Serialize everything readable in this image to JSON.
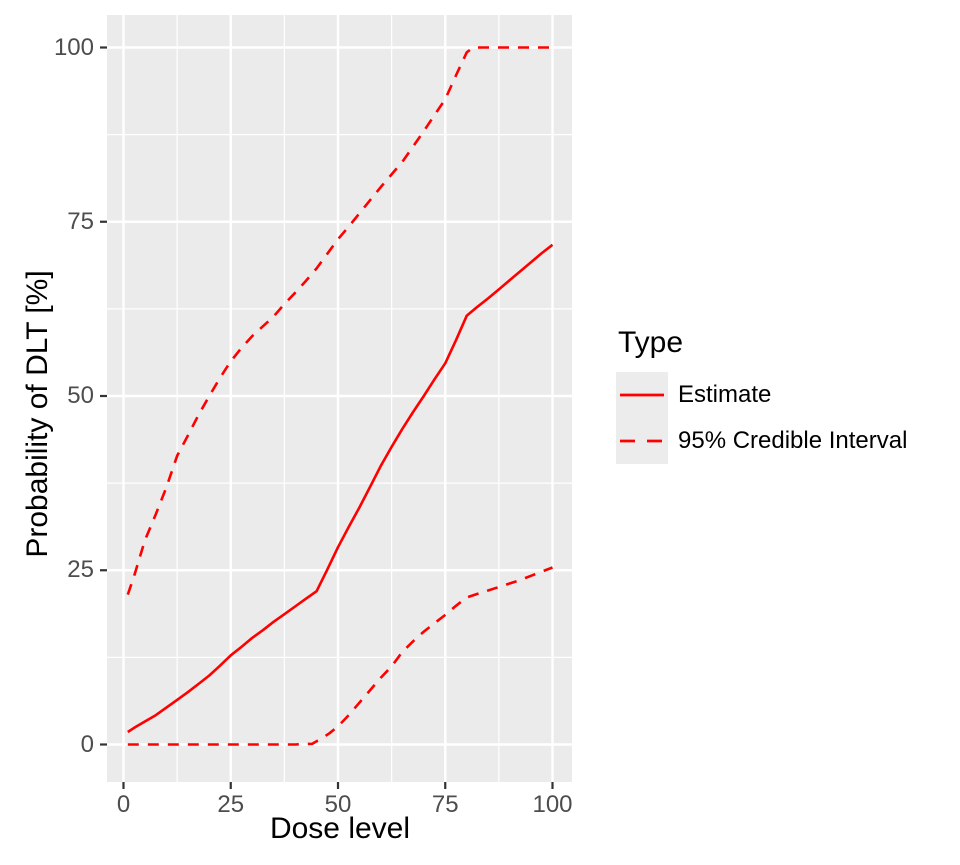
{
  "chart_data": {
    "type": "line",
    "title": "",
    "xlabel": "Dose level",
    "ylabel": "Probability of DLT [%]",
    "x_ticks": [
      0,
      25,
      50,
      75,
      100
    ],
    "y_ticks": [
      0,
      25,
      50,
      75,
      100
    ],
    "x_minor_ticks": [
      12.5,
      37.5,
      62.5,
      87.5
    ],
    "y_minor_ticks": [
      12.5,
      37.5,
      62.5,
      87.5
    ],
    "xlim": [
      -4,
      104.5
    ],
    "ylim": [
      -5.4,
      104.7
    ],
    "grid": "major and minor, white on gray panel",
    "legend_position": "right",
    "legend": {
      "title": "Type",
      "entries": [
        {
          "label": "Estimate",
          "linetype": "solid",
          "color": "#ff0000"
        },
        {
          "label": "95% Credible Interval",
          "linetype": "dashed",
          "color": "#ff0000"
        }
      ]
    },
    "colors": {
      "line": "#ff0000",
      "panel_bg": "#ebebeb",
      "grid": "#ffffff",
      "tick_text": "#4d4d4d",
      "axis_title_text": "#000000",
      "tick_mark": "#333333",
      "legend_key_bg": "#ececec",
      "background": "#ffffff"
    },
    "series": [
      {
        "name": "Estimate",
        "linetype": "solid",
        "points": [
          [
            1,
            1.8
          ],
          [
            2.5,
            2.4
          ],
          [
            5,
            3.3
          ],
          [
            7.5,
            4.2
          ],
          [
            10,
            5.3
          ],
          [
            12.5,
            6.4
          ],
          [
            15,
            7.5
          ],
          [
            17.5,
            8.7
          ],
          [
            20,
            9.9
          ],
          [
            22.5,
            11.3
          ],
          [
            25,
            12.8
          ],
          [
            27.5,
            14.0
          ],
          [
            30,
            15.3
          ],
          [
            32.5,
            16.4
          ],
          [
            35,
            17.6
          ],
          [
            37.5,
            18.7
          ],
          [
            40,
            19.8
          ],
          [
            42.5,
            20.9
          ],
          [
            45,
            22.0
          ],
          [
            47.5,
            25.1
          ],
          [
            50,
            28.3
          ],
          [
            52.5,
            31.2
          ],
          [
            55,
            34.0
          ],
          [
            57.5,
            37.0
          ],
          [
            60,
            40.0
          ],
          [
            62.5,
            42.7
          ],
          [
            65,
            45.3
          ],
          [
            67.5,
            47.7
          ],
          [
            70,
            50.0
          ],
          [
            72.5,
            52.4
          ],
          [
            75,
            54.7
          ],
          [
            77.5,
            58.0
          ],
          [
            80,
            61.5
          ],
          [
            82.5,
            62.8
          ],
          [
            85,
            64.0
          ],
          [
            87.5,
            65.3
          ],
          [
            90,
            66.6
          ],
          [
            92.5,
            67.9
          ],
          [
            95,
            69.2
          ],
          [
            97.5,
            70.5
          ],
          [
            100,
            71.7
          ]
        ]
      },
      {
        "name": "95% Credible Interval (upper)",
        "linetype": "dashed",
        "points": [
          [
            1,
            21.5
          ],
          [
            2.5,
            24.2
          ],
          [
            5,
            29.3
          ],
          [
            7.5,
            33.0
          ],
          [
            10,
            36.9
          ],
          [
            12.5,
            41.4
          ],
          [
            15,
            44.3
          ],
          [
            17.5,
            47.3
          ],
          [
            20,
            50.0
          ],
          [
            22.5,
            52.6
          ],
          [
            25,
            55.0
          ],
          [
            27.5,
            56.9
          ],
          [
            30,
            58.6
          ],
          [
            32.5,
            60.0
          ],
          [
            35,
            61.4
          ],
          [
            37.5,
            63.2
          ],
          [
            40,
            64.8
          ],
          [
            42.5,
            66.5
          ],
          [
            45,
            68.3
          ],
          [
            47.5,
            70.4
          ],
          [
            50,
            72.5
          ],
          [
            52.5,
            74.3
          ],
          [
            55,
            76.2
          ],
          [
            57.5,
            78.1
          ],
          [
            60,
            80.0
          ],
          [
            62.5,
            81.8
          ],
          [
            65,
            83.6
          ],
          [
            67.5,
            85.8
          ],
          [
            70,
            88.0
          ],
          [
            72.5,
            90.3
          ],
          [
            75,
            92.6
          ],
          [
            77.5,
            96.0
          ],
          [
            80,
            99.3
          ],
          [
            81.5,
            100
          ],
          [
            85,
            100
          ],
          [
            90,
            100
          ],
          [
            95,
            100
          ],
          [
            100,
            100
          ]
        ]
      },
      {
        "name": "95% Credible Interval (lower)",
        "linetype": "dashed",
        "points": [
          [
            1,
            0
          ],
          [
            5,
            0
          ],
          [
            10,
            0
          ],
          [
            15,
            0
          ],
          [
            20,
            0
          ],
          [
            25,
            0
          ],
          [
            30,
            0
          ],
          [
            35,
            0
          ],
          [
            40,
            0
          ],
          [
            44,
            0.1
          ],
          [
            46,
            0.8
          ],
          [
            48,
            1.6
          ],
          [
            50,
            2.6
          ],
          [
            52.5,
            4.2
          ],
          [
            55,
            6.0
          ],
          [
            57.5,
            7.8
          ],
          [
            60,
            9.6
          ],
          [
            62.5,
            11.2
          ],
          [
            65,
            13.3
          ],
          [
            67.5,
            14.8
          ],
          [
            70,
            16.2
          ],
          [
            72.5,
            17.4
          ],
          [
            75,
            18.6
          ],
          [
            77.5,
            19.9
          ],
          [
            80,
            21.1
          ],
          [
            82.5,
            21.6
          ],
          [
            85,
            22.1
          ],
          [
            87.5,
            22.6
          ],
          [
            90,
            23.1
          ],
          [
            92.5,
            23.6
          ],
          [
            95,
            24.2
          ],
          [
            97.5,
            24.8
          ],
          [
            100,
            25.4
          ]
        ]
      }
    ]
  }
}
